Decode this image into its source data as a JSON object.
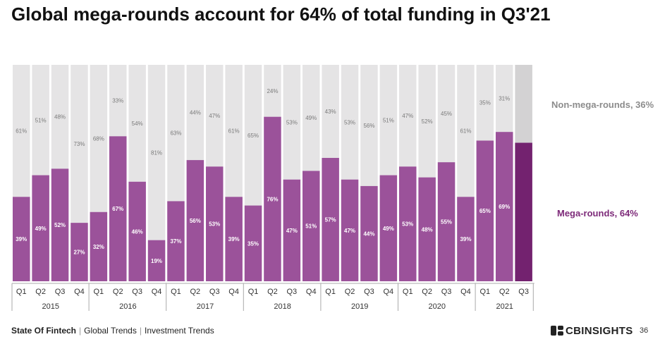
{
  "title": "Global mega-rounds account for 64% of total funding in Q3'21",
  "legend": {
    "non_mega": "Non-mega-rounds, 36%",
    "mega": "Mega-rounds, 64%"
  },
  "footer": {
    "section": "State Of Fintech",
    "crumb1": "Global Trends",
    "crumb2": "Investment Trends"
  },
  "logo": {
    "cb": "CB",
    "insights": "INSIGHTS"
  },
  "page_number": "36",
  "colors": {
    "mega": "#9b529a",
    "mega_highlight": "#73226f",
    "non_mega": "#e5e4e5",
    "non_mega_highlight": "#d3d2d3",
    "non_label": "#8c8c8c",
    "mega_label": "#7d2a79"
  },
  "chart_data": {
    "type": "bar",
    "stacked": true,
    "normalized": true,
    "title": "Global mega-rounds account for 64% of total funding in Q3'21",
    "categories": [
      "Q1",
      "Q2",
      "Q3",
      "Q4",
      "Q1",
      "Q2",
      "Q3",
      "Q4",
      "Q1",
      "Q2",
      "Q3",
      "Q4",
      "Q1",
      "Q2",
      "Q3",
      "Q4",
      "Q1",
      "Q2",
      "Q3",
      "Q4",
      "Q1",
      "Q2",
      "Q3",
      "Q4",
      "Q1",
      "Q2",
      "Q3"
    ],
    "groups": [
      {
        "label": "2015",
        "count": 4
      },
      {
        "label": "2016",
        "count": 4
      },
      {
        "label": "2017",
        "count": 4
      },
      {
        "label": "2018",
        "count": 4
      },
      {
        "label": "2019",
        "count": 4
      },
      {
        "label": "2020",
        "count": 4
      },
      {
        "label": "2021",
        "count": 3
      }
    ],
    "series": [
      {
        "name": "Mega-rounds",
        "values": [
          39,
          49,
          52,
          27,
          32,
          67,
          46,
          19,
          37,
          56,
          53,
          39,
          35,
          76,
          47,
          51,
          57,
          47,
          44,
          49,
          53,
          48,
          55,
          39,
          65,
          69,
          64
        ]
      },
      {
        "name": "Non-mega-rounds",
        "values": [
          61,
          51,
          48,
          73,
          68,
          33,
          54,
          81,
          63,
          44,
          47,
          61,
          65,
          24,
          53,
          49,
          43,
          53,
          56,
          51,
          47,
          52,
          45,
          61,
          35,
          31,
          36
        ]
      }
    ],
    "ylim": [
      0,
      100
    ],
    "highlight_last": true,
    "show_last_label": false
  }
}
